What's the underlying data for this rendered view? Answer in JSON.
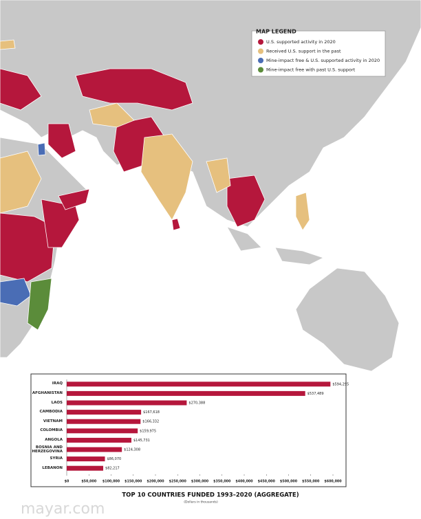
{
  "legend": {
    "title": "MAP LEGEND",
    "items": [
      {
        "label": "U.S. supported activity in 2020",
        "color": "#b5173c"
      },
      {
        "label": "Received U.S. support in the past",
        "color": "#e6c07e"
      },
      {
        "label": "Mine-impact free & U.S. supported activity in 2020",
        "color": "#4a6db5"
      },
      {
        "label": "Mine-impact free with past U.S. support",
        "color": "#5b8c3a"
      }
    ]
  },
  "chart_data": {
    "type": "bar",
    "orientation": "horizontal",
    "title": "TOP 10 COUNTRIES FUNDED 1993–2020 (AGGREGATE)",
    "subtitle": "(Dollars in thousands)",
    "categories": [
      "IRAQ",
      "AFGHANISTAN",
      "LAOS",
      "CAMBODIA",
      "VIETNAM",
      "COLOMBIA",
      "ANGOLA",
      "BOSNIA AND HERZEGOVINA",
      "SYRIA",
      "LEBANON"
    ],
    "values": [
      594295,
      537489,
      270388,
      167618,
      166332,
      159975,
      145731,
      124308,
      86070,
      82217
    ],
    "value_labels": [
      "$594,295",
      "$537,489",
      "$270,388",
      "$167,618",
      "$166,332",
      "$159,975",
      "$145,731",
      "$124,308",
      "$86,070",
      "$82,217"
    ],
    "color": "#b5173c",
    "xlim": [
      0,
      600000
    ],
    "xticks": [
      {
        "value": 0,
        "label": "$0"
      },
      {
        "value": 50000,
        "label": "$50,000"
      },
      {
        "value": 100000,
        "label": "$100,000"
      },
      {
        "value": 150000,
        "label": "$150,000"
      },
      {
        "value": 200000,
        "label": "$200,000"
      },
      {
        "value": 250000,
        "label": "$250,000"
      },
      {
        "value": 300000,
        "label": "$300,000"
      },
      {
        "value": 350000,
        "label": "$350,000"
      },
      {
        "value": 400000,
        "label": "$400,000"
      },
      {
        "value": 450000,
        "label": "$450,000"
      },
      {
        "value": 500000,
        "label": "$500,000"
      },
      {
        "value": 550000,
        "label": "$550,000"
      },
      {
        "value": 600000,
        "label": "$600,000"
      }
    ]
  },
  "watermark": "mayar.com"
}
